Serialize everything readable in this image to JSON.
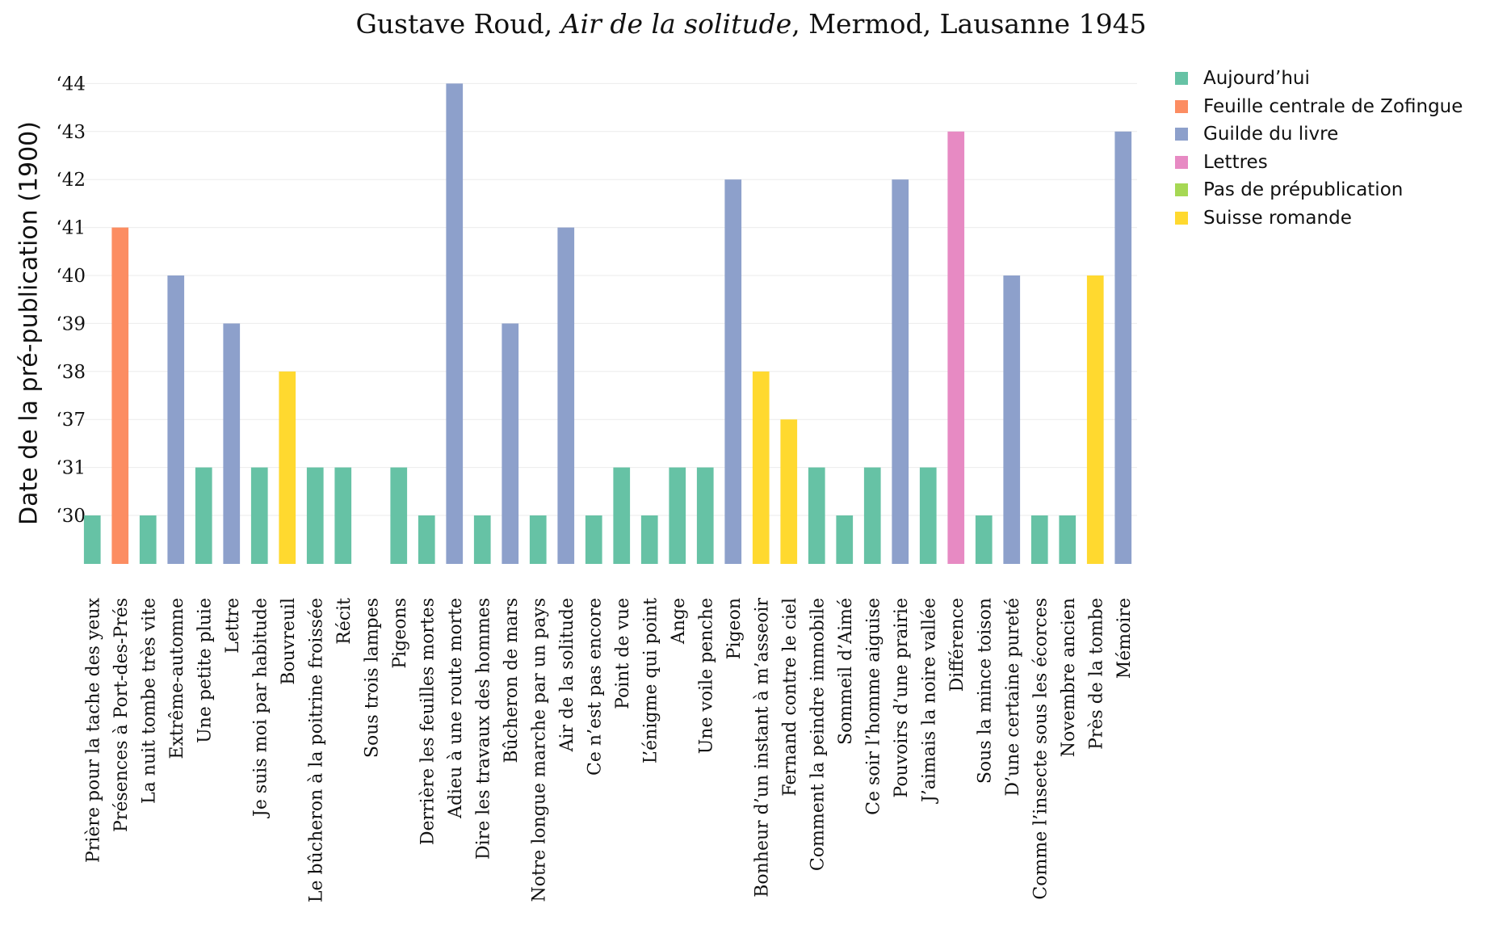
{
  "chart_data": {
    "type": "bar",
    "title": {
      "pre": "Gustave Roud, ",
      "italic": "Air de la solitude",
      "post": ", Mermod, Lausanne 1945"
    },
    "xlabel": "",
    "ylabel": "Date de la pré-publication (1900)",
    "y_categories": [
      "‘30",
      "‘31",
      "‘37",
      "‘38",
      "‘39",
      "‘40",
      "‘41",
      "‘42",
      "‘43",
      "‘44"
    ],
    "grid": "horizontal",
    "legend_position": "top-right",
    "series": [
      {
        "name": "Aujourd’hui",
        "color": "#66c2a5"
      },
      {
        "name": "Feuille centrale de Zofingue",
        "color": "#fc8d62"
      },
      {
        "name": "Guilde du livre",
        "color": "#8da0cb"
      },
      {
        "name": "Lettres",
        "color": "#e78ac3"
      },
      {
        "name": "Pas de prépublication",
        "color": "#a6d854"
      },
      {
        "name": "Suisse romande",
        "color": "#ffd92f"
      }
    ],
    "categories": [
      "Prière pour la tache des yeux",
      "Présences à Port-des-Prés",
      "La nuit tombe très vite",
      "Extrême-automne",
      "Une petite pluie",
      "Lettre",
      "Je suis moi par habitude",
      "Bouvreuil",
      "Le bûcheron à la poitrine froissée",
      "Récit",
      "Sous trois lampes",
      "Pigeons",
      "Derrière les feuilles mortes",
      "Adieu à une route morte",
      "Dire les travaux des hommes",
      "Bûcheron de mars",
      "Notre longue marche par un pays",
      "Air de la solitude",
      "Ce n’est pas encore",
      "Point de vue",
      "L’énigme qui point",
      "Ange",
      "Une voile penche",
      "Pigeon",
      "Bonheur d’un instant à m’asseoir",
      "Fernand contre le ciel",
      "Comment la peindre immobile",
      "Sommeil d’Aimé",
      "Ce soir l’homme aiguise",
      "Pouvoirs d’une prairie",
      "J’aimais la noire vallée",
      "Différence",
      "Sous la mince toison",
      "D’une certaine pureté",
      "Comme l’insecte sous les écorces",
      "Novembre ancien",
      "Près de la tombe",
      "Mémoire"
    ],
    "values": [
      "‘30",
      "‘41",
      "‘30",
      "‘40",
      "‘31",
      "‘39",
      "‘31",
      "‘38",
      "‘31",
      "‘31",
      null,
      "‘31",
      "‘30",
      "‘44",
      "‘30",
      "‘39",
      "‘30",
      "‘41",
      "‘30",
      "‘31",
      "‘30",
      "‘31",
      "‘31",
      "‘42",
      "‘38",
      "‘37",
      "‘31",
      "‘30",
      "‘31",
      "‘42",
      "‘31",
      "‘43",
      "‘30",
      "‘40",
      "‘30",
      "‘30",
      "‘40",
      "‘43"
    ],
    "series_of_bar": [
      "Aujourd’hui",
      "Feuille centrale de Zofingue",
      "Aujourd’hui",
      "Guilde du livre",
      "Aujourd’hui",
      "Guilde du livre",
      "Aujourd’hui",
      "Suisse romande",
      "Aujourd’hui",
      "Aujourd’hui",
      "Pas de prépublication",
      "Aujourd’hui",
      "Aujourd’hui",
      "Guilde du livre",
      "Aujourd’hui",
      "Guilde du livre",
      "Aujourd’hui",
      "Guilde du livre",
      "Aujourd’hui",
      "Aujourd’hui",
      "Aujourd’hui",
      "Aujourd’hui",
      "Aujourd’hui",
      "Guilde du livre",
      "Suisse romande",
      "Suisse romande",
      "Aujourd’hui",
      "Aujourd’hui",
      "Aujourd’hui",
      "Guilde du livre",
      "Aujourd’hui",
      "Lettres",
      "Aujourd’hui",
      "Guilde du livre",
      "Aujourd’hui",
      "Aujourd’hui",
      "Suisse romande",
      "Guilde du livre"
    ]
  }
}
